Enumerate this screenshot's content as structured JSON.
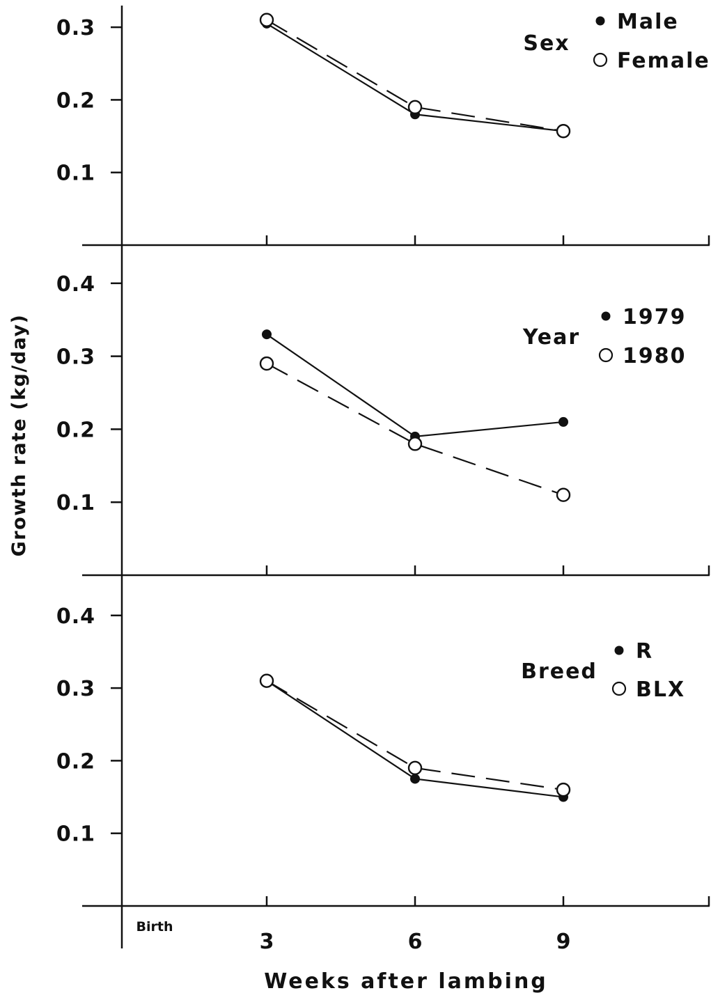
{
  "figure": {
    "ylabel": "Growth rate (kg/day)",
    "xlabel": "Weeks after lambing",
    "x_categories": [
      "Birth",
      "3",
      "6",
      "9"
    ]
  },
  "chart_data": [
    {
      "type": "line",
      "legend_title": "Sex",
      "x": [
        3,
        6,
        9
      ],
      "yticks": [
        "0.1",
        "0.2",
        "0.3"
      ],
      "ylim": [
        0,
        0.3
      ],
      "series": [
        {
          "name": "Male",
          "marker": "filled",
          "style": "solid",
          "values": [
            0.305,
            0.18,
            0.157
          ]
        },
        {
          "name": "Female",
          "marker": "open",
          "style": "dashed",
          "values": [
            0.31,
            0.19,
            0.157
          ]
        }
      ]
    },
    {
      "type": "line",
      "legend_title": "Year",
      "x": [
        3,
        6,
        9
      ],
      "yticks": [
        "0.1",
        "0.2",
        "0.3",
        "0.4"
      ],
      "ylim": [
        0,
        0.4
      ],
      "series": [
        {
          "name": "1979",
          "marker": "filled",
          "style": "solid",
          "values": [
            0.33,
            0.19,
            0.21
          ]
        },
        {
          "name": "1980",
          "marker": "open",
          "style": "dashed",
          "values": [
            0.29,
            0.18,
            0.11
          ]
        }
      ]
    },
    {
      "type": "line",
      "legend_title": "Breed",
      "x": [
        3,
        6,
        9
      ],
      "yticks": [
        "0.1",
        "0.2",
        "0.3",
        "0.4"
      ],
      "ylim": [
        0,
        0.4
      ],
      "series": [
        {
          "name": "R",
          "marker": "filled",
          "style": "solid",
          "values": [
            0.31,
            0.175,
            0.15
          ]
        },
        {
          "name": "BLX",
          "marker": "open",
          "style": "dashed",
          "values": [
            0.31,
            0.19,
            0.16
          ]
        }
      ]
    }
  ]
}
